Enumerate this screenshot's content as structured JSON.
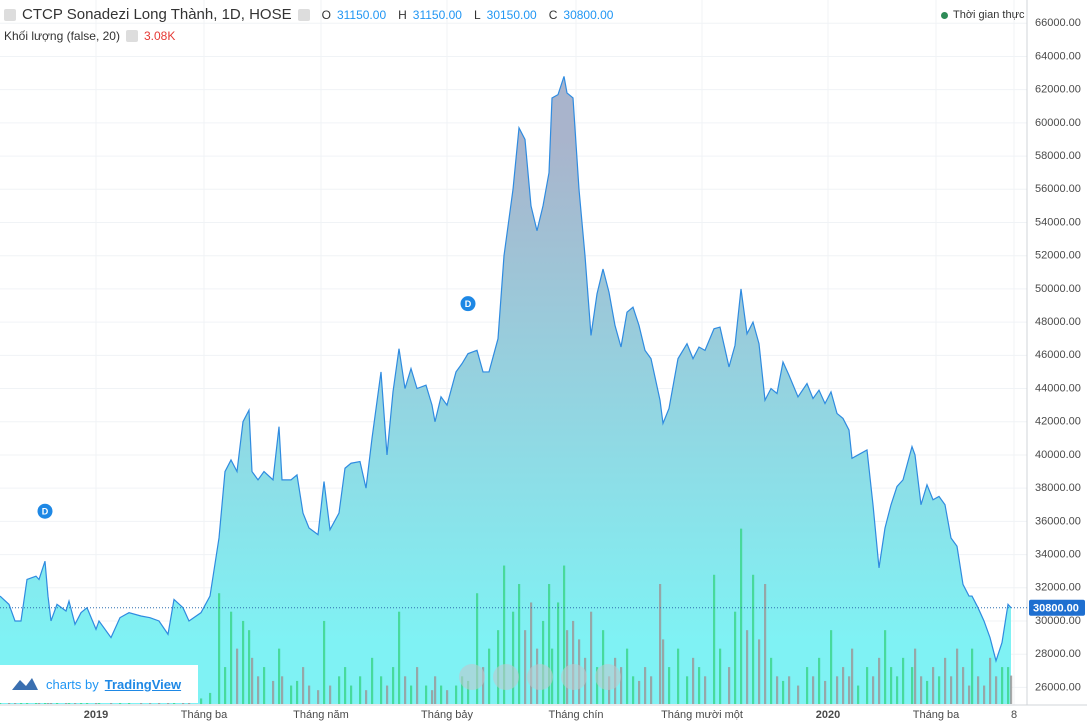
{
  "header": {
    "title": "CTCP Sonadezi Long Thành, 1D, HOSE",
    "o_label": "O",
    "o": "31150.00",
    "h_label": "H",
    "h": "31150.00",
    "l_label": "L",
    "l": "30150.00",
    "c_label": "C",
    "c": "30800.00",
    "volume_title": "Khối lượng (false, 20)",
    "volume_last": "3.08K",
    "realtime": "Thời gian thực",
    "brand_prefix": "charts by",
    "brand": "TradingView"
  },
  "chart_data": {
    "type": "area",
    "color": "#2f8be0",
    "x": [
      0,
      3,
      5,
      7,
      9,
      12,
      13,
      15,
      16,
      17,
      19,
      22,
      23,
      25,
      27,
      29,
      32,
      33,
      37,
      40,
      43,
      47,
      50,
      53,
      56,
      58,
      61,
      63,
      67,
      70,
      73,
      75,
      77,
      79,
      81,
      83,
      84,
      86,
      88,
      91,
      93,
      94,
      97,
      99,
      101,
      103,
      106,
      108,
      110,
      113,
      115,
      117,
      120,
      122,
      124,
      127,
      129,
      131,
      133,
      135,
      137,
      139,
      142,
      144,
      145,
      147,
      149,
      152,
      154,
      156,
      159,
      161,
      163,
      166,
      168,
      171,
      173,
      175,
      177,
      179,
      181,
      183,
      184,
      186,
      188,
      189,
      191,
      193,
      195,
      197,
      199,
      201,
      203,
      205,
      207,
      209,
      211,
      213,
      215,
      217,
      220,
      221,
      223,
      226,
      229,
      231,
      233,
      235,
      238,
      240,
      243,
      245,
      247,
      249,
      251,
      253,
      255,
      257,
      259,
      261,
      263,
      266,
      269,
      271,
      273,
      275,
      277,
      279,
      281,
      283,
      284,
      286,
      289,
      291,
      293,
      295,
      297,
      299,
      301,
      304,
      305,
      307,
      309,
      311,
      313,
      315,
      317,
      319,
      321,
      323,
      324,
      326,
      328,
      330,
      332,
      334,
      336,
      337
    ],
    "values": [
      31500,
      31000,
      30000,
      30000,
      32500,
      32700,
      32500,
      33600,
      31500,
      30000,
      31000,
      30600,
      31200,
      29800,
      30500,
      30800,
      29500,
      30000,
      29000,
      30200,
      30500,
      30300,
      30200,
      30000,
      29200,
      31300,
      30800,
      30000,
      30500,
      31500,
      35000,
      39000,
      39700,
      39000,
      42000,
      42700,
      39000,
      38500,
      39000,
      38500,
      41700,
      38500,
      38500,
      38800,
      36500,
      35600,
      35200,
      38400,
      35500,
      36500,
      39200,
      39500,
      39600,
      38000,
      41000,
      45000,
      40000,
      43800,
      46400,
      44000,
      45200,
      44000,
      44200,
      43000,
      42000,
      43500,
      43000,
      45000,
      45500,
      46100,
      46300,
      45000,
      45000,
      47000,
      52000,
      56000,
      59700,
      59000,
      55000,
      53500,
      55000,
      57000,
      61500,
      61700,
      62800,
      61800,
      61500,
      56000,
      52000,
      47200,
      49700,
      51200,
      49800,
      47800,
      46500,
      48600,
      48900,
      47800,
      46300,
      45800,
      43300,
      41900,
      42800,
      45800,
      46700,
      45800,
      46500,
      46300,
      47600,
      47700,
      45300,
      46600,
      50000,
      47300,
      48000,
      46700,
      43300,
      44000,
      43700,
      45600,
      44800,
      43500,
      44300,
      43400,
      43900,
      43100,
      43800,
      42500,
      42200,
      41500,
      39800,
      40000,
      40300,
      37000,
      33200,
      35600,
      37000,
      38100,
      38500,
      40500,
      40000,
      37000,
      38200,
      37300,
      37500,
      37000,
      35000,
      34500,
      32200,
      31500,
      31500,
      30800,
      30000,
      29000,
      27600,
      28700,
      31000,
      30800
    ],
    "volume": [
      0.4,
      0.3,
      0.5,
      0.6,
      0.8,
      0.5,
      0.4,
      0.9,
      0.6,
      0.4,
      0.5,
      0.3,
      0.4,
      0.6,
      0.3,
      0.5,
      0.4,
      0.3,
      0.5,
      0.4,
      0.3,
      0.4,
      0.5,
      0.3,
      0.6,
      0.8,
      0.5,
      0.4,
      0.6,
      1.2,
      12,
      4,
      10,
      6,
      9,
      8,
      5,
      3,
      4,
      2.5,
      6,
      3,
      2,
      2.5,
      4,
      2,
      1.5,
      9,
      2,
      3,
      4,
      2,
      3,
      1.5,
      5,
      3,
      2,
      4,
      10,
      3,
      2,
      4,
      2,
      1.5,
      3,
      2,
      1.5,
      2,
      3,
      2.5,
      12,
      4,
      6,
      8,
      15,
      10,
      13,
      8,
      11,
      6,
      9,
      13,
      6,
      11,
      15,
      8,
      9,
      7,
      5,
      10,
      4,
      8,
      3,
      5,
      4,
      6,
      3,
      2.5,
      4,
      3,
      13,
      7,
      4,
      6,
      3,
      5,
      4,
      3,
      14,
      6,
      4,
      10,
      19,
      8,
      14,
      7,
      13,
      5,
      3,
      2.5,
      3,
      2,
      4,
      3,
      5,
      2.5,
      8,
      3,
      4,
      3,
      6,
      2,
      4,
      3,
      5,
      8,
      4,
      3,
      5,
      4,
      6,
      3,
      2.5,
      4,
      3,
      5,
      3,
      6,
      4,
      2,
      6,
      3,
      2,
      5,
      3,
      4,
      4,
      3.08
    ],
    "vlim": [
      0,
      26
    ],
    "up_color": "#3dd68c",
    "down_color": "#9a9a9a",
    "xlim": [
      0,
      342
    ],
    "ylim": [
      25000,
      67400
    ],
    "xticks": [
      {
        "value": 32,
        "label": "2019"
      },
      {
        "value": 68,
        "label": "Tháng ba"
      },
      {
        "value": 107,
        "label": "Tháng năm"
      },
      {
        "value": 149,
        "label": "Tháng bảy"
      },
      {
        "value": 192,
        "label": "Tháng chín"
      },
      {
        "value": 234,
        "label": "Tháng mười một"
      },
      {
        "value": 276,
        "label": "2020"
      },
      {
        "value": 312,
        "label": "Tháng ba"
      },
      {
        "value": 338,
        "label": "8"
      }
    ],
    "yticks": [
      {
        "value": 26000,
        "label": "26000.00"
      },
      {
        "value": 28000,
        "label": "28000.00"
      },
      {
        "value": 30000,
        "label": "30000.00"
      },
      {
        "value": 32000,
        "label": "32000.00"
      },
      {
        "value": 34000,
        "label": "34000.00"
      },
      {
        "value": 36000,
        "label": "36000.00"
      },
      {
        "value": 38000,
        "label": "38000.00"
      },
      {
        "value": 40000,
        "label": "40000.00"
      },
      {
        "value": 42000,
        "label": "42000.00"
      },
      {
        "value": 44000,
        "label": "44000.00"
      },
      {
        "value": 46000,
        "label": "46000.00"
      },
      {
        "value": 48000,
        "label": "48000.00"
      },
      {
        "value": 50000,
        "label": "50000.00"
      },
      {
        "value": 52000,
        "label": "52000.00"
      },
      {
        "value": 54000,
        "label": "54000.00"
      },
      {
        "value": 56000,
        "label": "56000.00"
      },
      {
        "value": 58000,
        "label": "58000.00"
      },
      {
        "value": 60000,
        "label": "60000.00"
      },
      {
        "value": 62000,
        "label": "62000.00"
      },
      {
        "value": 64000,
        "label": "64000.00"
      },
      {
        "value": 66000,
        "label": "66000.00"
      }
    ],
    "last": {
      "value": 30800,
      "label": "30800.00"
    },
    "events": [
      {
        "x": 15,
        "label": "D"
      },
      {
        "x": 156,
        "label": "D"
      }
    ],
    "grid": true
  }
}
